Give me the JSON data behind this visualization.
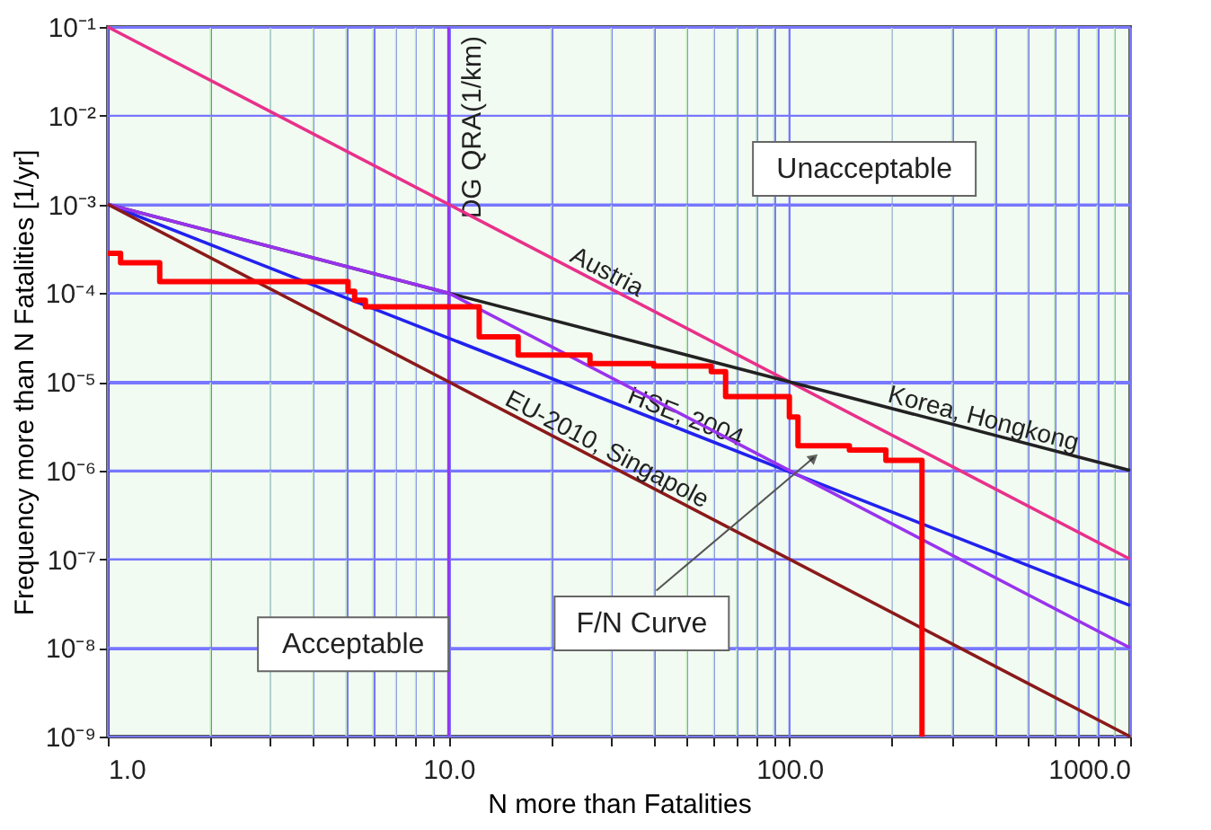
{
  "chart_data": {
    "type": "line",
    "xlabel": "N more than Fatalities",
    "ylabel": "Frequency more than N Fatalities [1/yr]",
    "log": "xy",
    "grid": true,
    "marker": "none",
    "line_style": "solid",
    "xlim": [
      1,
      1000
    ],
    "ylim": [
      1e-09,
      0.1
    ],
    "xticks": [
      {
        "value": 1,
        "label": "1.0"
      },
      {
        "value": 2,
        "label": null
      },
      {
        "value": 3,
        "label": null
      },
      {
        "value": 4,
        "label": null
      },
      {
        "value": 5,
        "label": null
      },
      {
        "value": 6,
        "label": null
      },
      {
        "value": 7,
        "label": null
      },
      {
        "value": 8,
        "label": null
      },
      {
        "value": 9,
        "label": null
      },
      {
        "value": 10,
        "label": "10.0"
      },
      {
        "value": 20,
        "label": null
      },
      {
        "value": 30,
        "label": null
      },
      {
        "value": 40,
        "label": null
      },
      {
        "value": 50,
        "label": null
      },
      {
        "value": 60,
        "label": null
      },
      {
        "value": 70,
        "label": null
      },
      {
        "value": 80,
        "label": null
      },
      {
        "value": 90,
        "label": null
      },
      {
        "value": 100,
        "label": "100.0"
      },
      {
        "value": 200,
        "label": null
      },
      {
        "value": 300,
        "label": null
      },
      {
        "value": 400,
        "label": null
      },
      {
        "value": 500,
        "label": null
      },
      {
        "value": 600,
        "label": null
      },
      {
        "value": 700,
        "label": null
      },
      {
        "value": 800,
        "label": null
      },
      {
        "value": 900,
        "label": null
      },
      {
        "value": 1000,
        "label": "1000.0"
      }
    ],
    "yticks": [
      {
        "value": 1e-09,
        "label": "10⁻⁹"
      },
      {
        "value": 1e-08,
        "label": "10⁻⁸"
      },
      {
        "value": 1e-07,
        "label": "10⁻⁷"
      },
      {
        "value": 1e-06,
        "label": "10⁻⁶"
      },
      {
        "value": 1e-05,
        "label": "10⁻⁵"
      },
      {
        "value": 0.0001,
        "label": "10⁻⁴"
      },
      {
        "value": 0.001,
        "label": "10⁻³"
      },
      {
        "value": 0.01,
        "label": "10⁻²"
      },
      {
        "value": 0.1,
        "label": "10⁻¹"
      }
    ],
    "series": [
      {
        "name": "Austria",
        "color": "#e8318a",
        "x": [
          1,
          1000
        ],
        "values": [
          0.1,
          1e-07
        ]
      },
      {
        "name": "Korea, Hongkong",
        "color": "#222222",
        "x": [
          1,
          1000
        ],
        "values": [
          0.001,
          1e-06
        ]
      },
      {
        "name": "HSE, 2004",
        "color": "#2222ee",
        "x": [
          1,
          1000
        ],
        "values": [
          0.001,
          3e-08
        ]
      },
      {
        "color": "#9933ee",
        "x": [
          1,
          10,
          1000
        ],
        "values": [
          0.001,
          0.0001,
          1e-08
        ]
      },
      {
        "name": "EU-2010, Singapole",
        "color": "#8b1a1a",
        "x": [
          1,
          1000
        ],
        "values": [
          0.001,
          1e-09
        ]
      },
      {
        "type": "step",
        "color": "#ff0000",
        "x": [
          1,
          1.09,
          1.42,
          5.07,
          5.3,
          5.7,
          12.3,
          16,
          26,
          40,
          59,
          65,
          100,
          106,
          150,
          192,
          245
        ],
        "values": [
          0.00028,
          0.00022,
          0.000135,
          0.000105,
          8.3e-05,
          7e-05,
          3.2e-05,
          2e-05,
          1.6e-05,
          1.5e-05,
          1.3e-05,
          6.8e-06,
          4e-06,
          1.9e-06,
          1.7e-06,
          1.3e-06,
          1e-09
        ]
      }
    ],
    "ref_lines": [
      {
        "axis": "x",
        "value": 10,
        "label": "DG QRA(1/km)",
        "color": "#9933ee"
      }
    ],
    "annotations": [
      "Unacceptable",
      "Acceptable",
      {
        "text": "F/N Curve",
        "x": 118,
        "y": 1.4e-06
      }
    ]
  }
}
